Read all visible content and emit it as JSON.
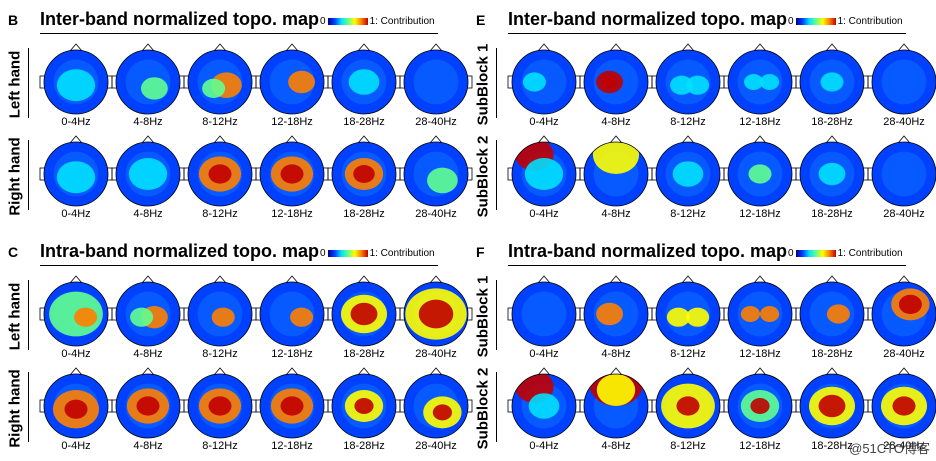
{
  "panels": [
    {
      "letter": "B",
      "title": "Inter-band normalized topo. map",
      "rows": [
        "Left hand",
        "Right hand"
      ]
    },
    {
      "letter": "E",
      "title": "Inter-band normalized topo. map",
      "rows": [
        "SubBlock 1",
        "SubBlock 2"
      ]
    },
    {
      "letter": "C",
      "title": "Intra-band normalized topo. map",
      "rows": [
        "Left hand",
        "Right hand"
      ]
    },
    {
      "letter": "F",
      "title": "Intra-band normalized topo. map",
      "rows": [
        "SubBlock 1",
        "SubBlock 2"
      ]
    }
  ],
  "colorbar": {
    "min": "0",
    "max": "1",
    "label": ": Contribution"
  },
  "bands": [
    "0-4Hz",
    "4-8Hz",
    "8-12Hz",
    "12-18Hz",
    "18-28Hz",
    "28-40Hz"
  ],
  "watermark": "@51CTO博客",
  "palette": [
    "#00008f",
    "#0040ff",
    "#00e0ff",
    "#60ff90",
    "#ffff00",
    "#ff8000",
    "#c00000"
  ]
}
